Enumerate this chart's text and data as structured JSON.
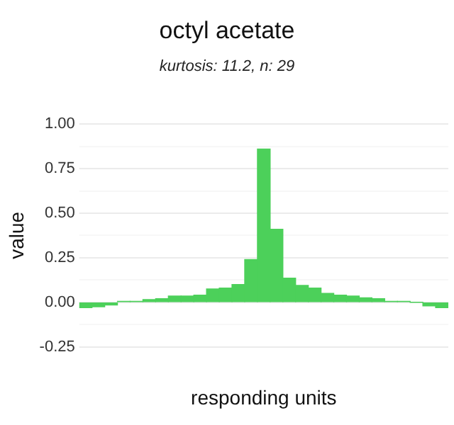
{
  "chart_data": {
    "type": "bar",
    "title": "octyl acetate",
    "subtitle": "kurtosis: 11.2, n: 29",
    "xlabel": "responding units",
    "ylabel": "value",
    "categories": [
      null,
      null,
      null,
      null,
      null,
      null,
      null,
      null,
      null,
      null,
      null,
      null,
      null,
      null,
      null,
      null,
      null,
      null,
      null,
      null,
      null,
      null,
      null,
      null,
      null,
      null,
      null,
      null,
      null
    ],
    "values": [
      -0.03,
      -0.025,
      -0.015,
      0.005,
      0.005,
      0.015,
      0.02,
      0.035,
      0.035,
      0.04,
      0.075,
      0.08,
      0.1,
      0.24,
      0.86,
      0.41,
      0.135,
      0.095,
      0.08,
      0.05,
      0.04,
      0.035,
      0.025,
      0.02,
      0.005,
      0.005,
      0,
      -0.02,
      -0.03
    ],
    "color": "#4cd05a",
    "ylim": [
      -0.25,
      1
    ],
    "yticks": [
      -0.25,
      {
        "value": -0.125,
        "label": null
      },
      {
        "value": 0,
        "label": "0.00"
      },
      {
        "value": 0.125,
        "label": null
      },
      "0.25",
      {
        "value": 0.375,
        "label": null
      },
      "0.50",
      {
        "value": 0.625,
        "label": null
      },
      "0.75",
      {
        "value": 0.875,
        "label": null
      },
      "1.00"
    ],
    "grid": "y",
    "legend": false
  }
}
